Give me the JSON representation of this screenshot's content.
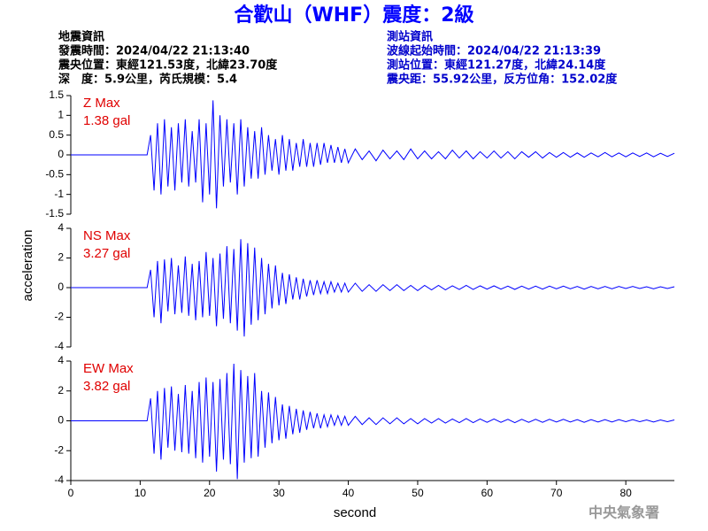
{
  "header": {
    "title": "合歡山（WHF）震度：2級",
    "quake": [
      "地震資訊",
      "發震時間：2024/04/22 21:13:40",
      "震央位置：東經121.53度，北緯23.70度",
      "深　度：5.9公里，芮氏規模：5.4"
    ],
    "station": [
      "測站資訊",
      "波線起始時間：2024/04/22 21:13:39",
      "測站位置：東經121.27度，北緯24.14度",
      "震央距：55.92公里，反方位角：152.02度"
    ]
  },
  "footer": "中央氣象署",
  "chart_data": [
    {
      "type": "line",
      "color": "#0000ff",
      "annotation": [
        "Z Max",
        "1.38 gal"
      ],
      "ylim": [
        -1.5,
        1.5
      ],
      "yticks": [
        -1.5,
        -1,
        -0.5,
        0,
        0.5,
        1,
        1.5
      ],
      "xlim": [
        0,
        87
      ],
      "x": [
        0,
        11,
        11.5,
        12,
        12.5,
        13,
        13.5,
        14,
        14.5,
        15,
        15.5,
        16,
        16.5,
        17,
        17.5,
        18,
        18.5,
        19,
        19.5,
        20,
        20.5,
        21,
        21.5,
        22,
        22.5,
        23,
        23.5,
        24,
        24.5,
        25,
        25.5,
        26,
        26.5,
        27,
        27.5,
        28,
        28.5,
        29,
        29.5,
        30,
        30.5,
        31,
        31.5,
        32,
        32.5,
        33,
        33.5,
        34,
        34.5,
        35,
        35.5,
        36,
        36.5,
        37,
        37.5,
        38,
        38.5,
        39,
        39.5,
        40,
        41,
        42,
        43,
        44,
        45,
        46,
        47,
        48,
        49,
        50,
        51,
        52,
        53,
        54,
        55,
        56,
        57,
        58,
        59,
        60,
        61,
        62,
        63,
        64,
        65,
        66,
        67,
        68,
        69,
        70,
        71,
        72,
        73,
        74,
        75,
        76,
        77,
        78,
        79,
        80,
        81,
        82,
        83,
        84,
        85,
        86,
        87
      ],
      "values": [
        0,
        0,
        0.5,
        -0.9,
        0.8,
        -1.0,
        0.9,
        -0.8,
        0.7,
        -0.9,
        0.8,
        -0.7,
        0.9,
        -0.8,
        0.6,
        -0.7,
        0.9,
        -1.2,
        0.8,
        -1.0,
        1.38,
        -1.35,
        1.0,
        -0.8,
        0.9,
        -0.7,
        0.8,
        -1.0,
        0.9,
        -0.8,
        0.7,
        -0.6,
        0.6,
        -0.6,
        0.7,
        -0.5,
        0.5,
        -0.4,
        0.4,
        -0.5,
        0.5,
        -0.4,
        0.4,
        -0.4,
        0.3,
        -0.3,
        0.4,
        -0.3,
        0.3,
        -0.3,
        0.3,
        -0.25,
        0.3,
        -0.2,
        0.25,
        -0.2,
        0.2,
        -0.2,
        0.15,
        -0.2,
        0.15,
        -0.12,
        0.1,
        -0.15,
        0.12,
        -0.1,
        0.1,
        -0.12,
        0.15,
        -0.1,
        0.1,
        -0.1,
        0.08,
        -0.1,
        0.12,
        -0.08,
        0.1,
        -0.1,
        0.08,
        -0.08,
        0.1,
        -0.08,
        0.08,
        -0.1,
        0.08,
        -0.06,
        0.08,
        -0.08,
        0.06,
        -0.06,
        0.06,
        -0.06,
        0.05,
        -0.06,
        0.05,
        -0.05,
        0.06,
        -0.05,
        0.05,
        -0.05,
        0.05,
        -0.04,
        0.05,
        -0.05,
        0.04,
        -0.04,
        0.04
      ]
    },
    {
      "type": "line",
      "color": "#0000ff",
      "annotation": [
        "NS Max",
        "3.27 gal"
      ],
      "ylabel": "acceleration",
      "ylim": [
        -4,
        4
      ],
      "yticks": [
        -4,
        -2,
        0,
        2,
        4
      ],
      "xlim": [
        0,
        87
      ],
      "x": [
        0,
        11,
        11.5,
        12,
        12.5,
        13,
        13.5,
        14,
        14.5,
        15,
        15.5,
        16,
        16.5,
        17,
        17.5,
        18,
        18.5,
        19,
        19.5,
        20,
        20.5,
        21,
        21.5,
        22,
        22.5,
        23,
        23.5,
        24,
        24.5,
        25,
        25.5,
        26,
        26.5,
        27,
        27.5,
        28,
        28.5,
        29,
        29.5,
        30,
        30.5,
        31,
        31.5,
        32,
        32.5,
        33,
        33.5,
        34,
        34.5,
        35,
        35.5,
        36,
        36.5,
        37,
        37.5,
        38,
        38.5,
        39,
        39.5,
        40,
        41,
        42,
        43,
        44,
        45,
        46,
        47,
        48,
        49,
        50,
        51,
        52,
        53,
        54,
        55,
        56,
        57,
        58,
        59,
        60,
        61,
        62,
        63,
        64,
        65,
        66,
        67,
        68,
        69,
        70,
        71,
        72,
        73,
        74,
        75,
        76,
        77,
        78,
        79,
        80,
        81,
        82,
        83,
        84,
        85,
        86,
        87
      ],
      "values": [
        0,
        0,
        1.2,
        -2.0,
        1.8,
        -2.4,
        1.9,
        -1.6,
        2.0,
        -1.8,
        1.5,
        -1.7,
        2.1,
        -1.9,
        1.6,
        -2.2,
        1.8,
        -2.0,
        2.4,
        -1.9,
        2.0,
        -2.6,
        2.3,
        -2.1,
        2.8,
        -2.4,
        2.6,
        -2.9,
        3.27,
        -3.3,
        3.0,
        -2.5,
        2.7,
        -2.2,
        2.0,
        -1.8,
        1.6,
        -1.4,
        1.5,
        -1.2,
        1.0,
        -1.1,
        0.9,
        -0.8,
        0.7,
        -0.8,
        0.6,
        -0.6,
        0.5,
        -0.5,
        0.5,
        -0.4,
        0.4,
        -0.4,
        0.4,
        -0.3,
        0.3,
        -0.3,
        0.3,
        -0.3,
        0.3,
        -0.25,
        0.2,
        -0.25,
        0.2,
        -0.2,
        0.2,
        -0.2,
        0.15,
        -0.2,
        0.15,
        -0.15,
        0.15,
        -0.15,
        0.12,
        -0.12,
        0.15,
        -0.12,
        0.12,
        -0.1,
        0.12,
        -0.1,
        0.1,
        -0.12,
        0.1,
        -0.1,
        0.1,
        -0.1,
        0.1,
        -0.08,
        0.1,
        -0.08,
        0.08,
        -0.1,
        0.08,
        -0.08,
        0.08,
        -0.08,
        0.08,
        -0.06,
        0.08,
        -0.06,
        0.06,
        -0.08,
        0.06,
        -0.06,
        0.06
      ]
    },
    {
      "type": "line",
      "color": "#0000ff",
      "annotation": [
        "EW Max",
        "3.82 gal"
      ],
      "xlabel": "second",
      "ylim": [
        -4,
        4
      ],
      "yticks": [
        -4,
        -2,
        0,
        2,
        4
      ],
      "xlim": [
        0,
        87
      ],
      "xticks": [
        0,
        10,
        20,
        30,
        40,
        50,
        60,
        70,
        80
      ],
      "x": [
        0,
        11,
        11.5,
        12,
        12.5,
        13,
        13.5,
        14,
        14.5,
        15,
        15.5,
        16,
        16.5,
        17,
        17.5,
        18,
        18.5,
        19,
        19.5,
        20,
        20.5,
        21,
        21.5,
        22,
        22.5,
        23,
        23.5,
        24,
        24.5,
        25,
        25.5,
        26,
        26.5,
        27,
        27.5,
        28,
        28.5,
        29,
        29.5,
        30,
        30.5,
        31,
        31.5,
        32,
        32.5,
        33,
        33.5,
        34,
        34.5,
        35,
        35.5,
        36,
        36.5,
        37,
        37.5,
        38,
        38.5,
        39,
        39.5,
        40,
        41,
        42,
        43,
        44,
        45,
        46,
        47,
        48,
        49,
        50,
        51,
        52,
        53,
        54,
        55,
        56,
        57,
        58,
        59,
        60,
        61,
        62,
        63,
        64,
        65,
        66,
        67,
        68,
        69,
        70,
        71,
        72,
        73,
        74,
        75,
        76,
        77,
        78,
        79,
        80,
        81,
        82,
        83,
        84,
        85,
        86,
        87
      ],
      "values": [
        0,
        0,
        1.5,
        -2.2,
        2.0,
        -2.6,
        2.2,
        -1.8,
        2.3,
        -2.0,
        1.8,
        -2.1,
        2.4,
        -2.2,
        2.0,
        -2.5,
        2.6,
        -2.8,
        2.9,
        -2.4,
        2.6,
        -3.4,
        2.8,
        -2.6,
        3.2,
        -2.9,
        3.82,
        -3.9,
        3.4,
        -2.8,
        3.0,
        -2.5,
        3.2,
        -2.4,
        2.0,
        -1.8,
        1.9,
        -1.5,
        1.6,
        -1.3,
        1.1,
        -1.2,
        1.0,
        -0.9,
        0.8,
        -0.8,
        0.7,
        -0.6,
        0.6,
        -0.5,
        0.5,
        -0.5,
        0.4,
        -0.4,
        0.4,
        -0.3,
        0.35,
        -0.3,
        0.3,
        -0.3,
        0.3,
        -0.25,
        0.2,
        -0.25,
        0.2,
        -0.2,
        0.2,
        -0.2,
        0.15,
        -0.2,
        0.15,
        -0.15,
        0.15,
        -0.15,
        0.12,
        -0.12,
        0.15,
        -0.12,
        0.12,
        -0.1,
        0.12,
        -0.1,
        0.1,
        -0.12,
        0.1,
        -0.1,
        0.1,
        -0.1,
        0.1,
        -0.08,
        0.1,
        -0.08,
        0.08,
        -0.1,
        0.08,
        -0.08,
        0.08,
        -0.08,
        0.08,
        -0.06,
        0.08,
        -0.06,
        0.06,
        -0.08,
        0.06,
        -0.06,
        0.06
      ]
    }
  ]
}
